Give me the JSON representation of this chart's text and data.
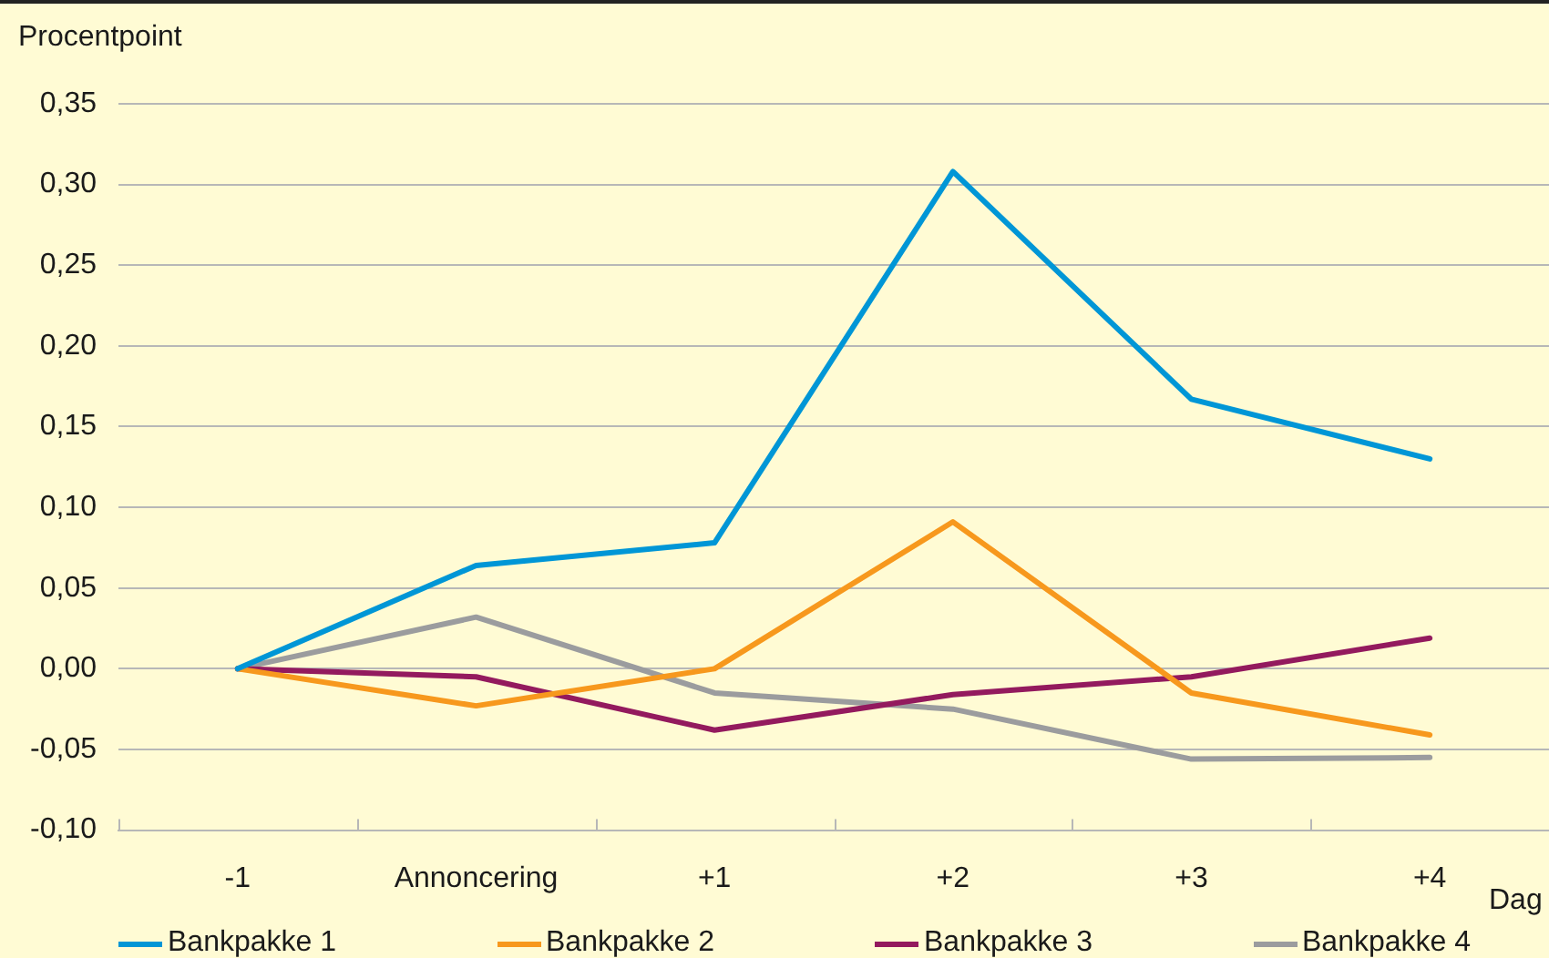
{
  "chart_data": {
    "type": "line",
    "ylabel": "Procentpoint",
    "xlabel": "Dag",
    "categories": [
      "-1",
      "Annoncering",
      "+1",
      "+2",
      "+3",
      "+4"
    ],
    "series": [
      {
        "name": "Bankpakke 1",
        "color": "#0096d6",
        "values": [
          0,
          0.064,
          0.078,
          0.308,
          0.167,
          0.13
        ]
      },
      {
        "name": "Bankpakke 2",
        "color": "#f7981d",
        "values": [
          0,
          -0.023,
          0,
          0.091,
          -0.015,
          -0.041
        ]
      },
      {
        "name": "Bankpakke 3",
        "color": "#931a5e",
        "values": [
          0,
          -0.005,
          -0.038,
          -0.016,
          -0.005,
          0.019
        ]
      },
      {
        "name": "Bankpakke 4",
        "color": "#9b9c9e",
        "values": [
          0,
          0.032,
          -0.015,
          -0.025,
          -0.056,
          -0.055
        ]
      }
    ],
    "ylim": [
      -0.1,
      0.35
    ],
    "yticks": [
      {
        "value": -0.1,
        "label": "-0,10"
      },
      {
        "value": -0.05,
        "label": "-0,05"
      },
      {
        "value": 0,
        "label": "0,00"
      },
      {
        "value": 0.05,
        "label": "0,05"
      },
      {
        "value": 0.1,
        "label": "0,10"
      },
      {
        "value": 0.15,
        "label": "0,15"
      },
      {
        "value": 0.2,
        "label": "0,20"
      },
      {
        "value": 0.25,
        "label": "0,25"
      },
      {
        "value": 0.3,
        "label": "0,30"
      },
      {
        "value": 0.35,
        "label": "0,35"
      }
    ],
    "grid": "y",
    "legend": "bottom",
    "marker": "none",
    "line_style": "solid"
  }
}
